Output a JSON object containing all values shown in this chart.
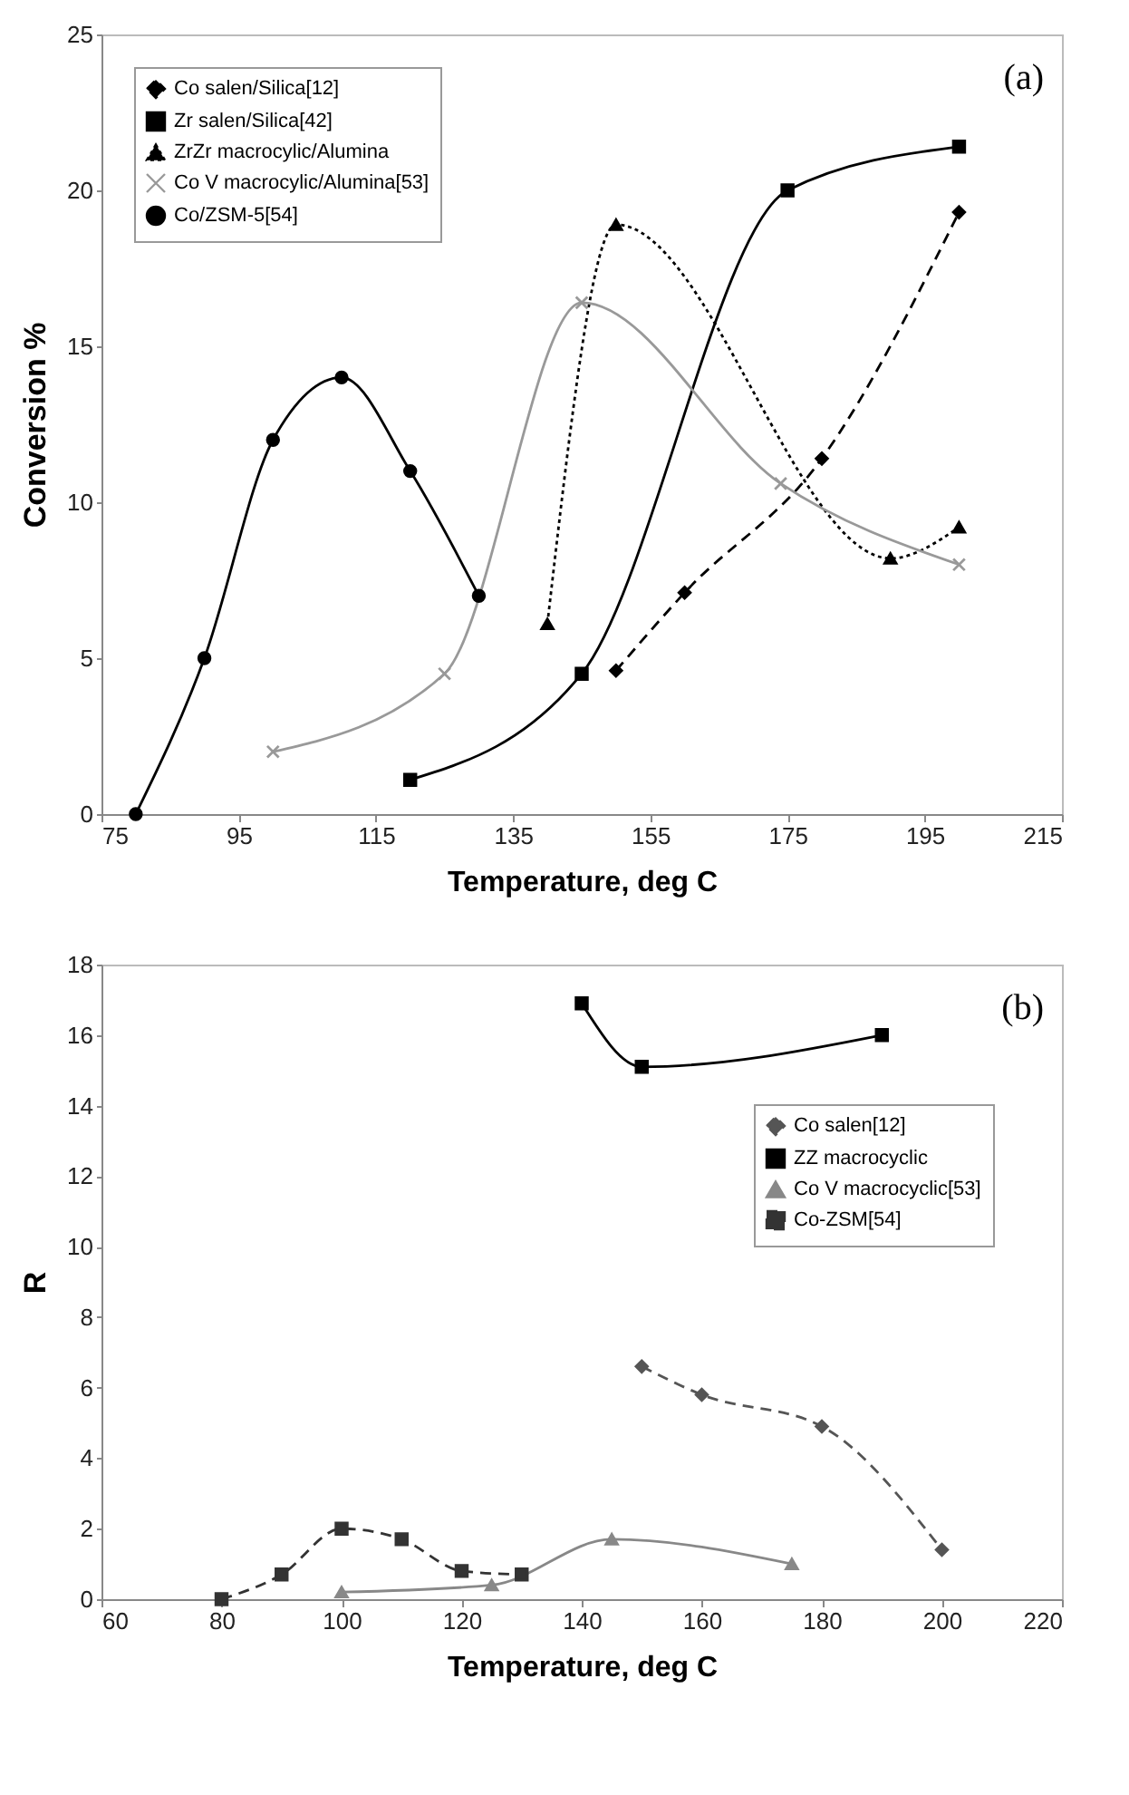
{
  "chart_data": [
    {
      "type": "line",
      "xlabel": "Temperature, deg C",
      "ylabel": "Conversion %",
      "annotations": [
        "(a)"
      ],
      "xlim": [
        75,
        215
      ],
      "xticks": [
        75,
        95,
        115,
        135,
        155,
        175,
        195,
        215
      ],
      "ylim": [
        0,
        25
      ],
      "yticks": [
        0,
        5,
        10,
        15,
        20,
        25
      ],
      "grid": false,
      "legend": "top left",
      "series": [
        {
          "name": "Co salen/Silica[12]",
          "color": "#000000",
          "marker": "diamond",
          "line_style": "dashed",
          "x": [
            150,
            160,
            180,
            200
          ],
          "values": [
            4.6,
            7.1,
            11.4,
            19.3
          ]
        },
        {
          "name": "Zr salen/Silica[42]",
          "color": "#000000",
          "marker": "square",
          "line_style": "solid",
          "x": [
            120,
            145,
            175,
            200
          ],
          "values": [
            1.1,
            4.5,
            20.0,
            21.4
          ]
        },
        {
          "name": "ZrZr macrocylic/Alumina",
          "color": "#000000",
          "marker": "triangle",
          "line_style": "dotted",
          "x": [
            140,
            150,
            190,
            200
          ],
          "values": [
            6.1,
            18.9,
            8.2,
            9.2
          ]
        },
        {
          "name": "Co V macrocylic/Alumina[53]",
          "color": "#999999",
          "marker": "cross",
          "line_style": "solid",
          "x": [
            100,
            125,
            145,
            174,
            200
          ],
          "values": [
            2.0,
            4.5,
            16.4,
            10.6,
            8.0
          ]
        },
        {
          "name": "Co/ZSM-5[54]",
          "color": "#000000",
          "marker": "circle",
          "line_style": "solid",
          "x": [
            80,
            90,
            100,
            110,
            120,
            130
          ],
          "values": [
            0,
            5.0,
            12.0,
            14.0,
            11.0,
            7.0
          ]
        }
      ]
    },
    {
      "type": "line",
      "xlabel": "Temperature, deg C",
      "ylabel": "R",
      "annotations": [
        "(b)"
      ],
      "xlim": [
        60,
        220
      ],
      "xticks": [
        60,
        80,
        100,
        120,
        140,
        160,
        180,
        200,
        220
      ],
      "ylim": [
        0,
        18
      ],
      "yticks": [
        0,
        2,
        4,
        6,
        8,
        10,
        12,
        14,
        16,
        18
      ],
      "grid": false,
      "legend": "right",
      "series": [
        {
          "name": "Co salen[12]",
          "color": "#555555",
          "marker": "diamond",
          "line_style": "dashed",
          "x": [
            150,
            160,
            180,
            200
          ],
          "values": [
            6.6,
            5.8,
            4.9,
            1.4
          ]
        },
        {
          "name": "ZZ macrocyclic",
          "color": "#000000",
          "marker": "square",
          "line_style": "solid",
          "x": [
            140,
            150,
            190
          ],
          "values": [
            16.9,
            15.1,
            16.0
          ]
        },
        {
          "name": "Co V macrocyclic[53]",
          "color": "#888888",
          "marker": "triangle",
          "line_style": "solid",
          "x": [
            100,
            125,
            145,
            175
          ],
          "values": [
            0.2,
            0.4,
            1.7,
            1.0
          ]
        },
        {
          "name": "Co-ZSM[54]",
          "color": "#333333",
          "marker": "square",
          "line_style": "dashed",
          "x": [
            80,
            90,
            100,
            110,
            120,
            130
          ],
          "values": [
            0,
            0.7,
            2.0,
            1.7,
            0.8,
            0.7
          ]
        }
      ]
    }
  ]
}
